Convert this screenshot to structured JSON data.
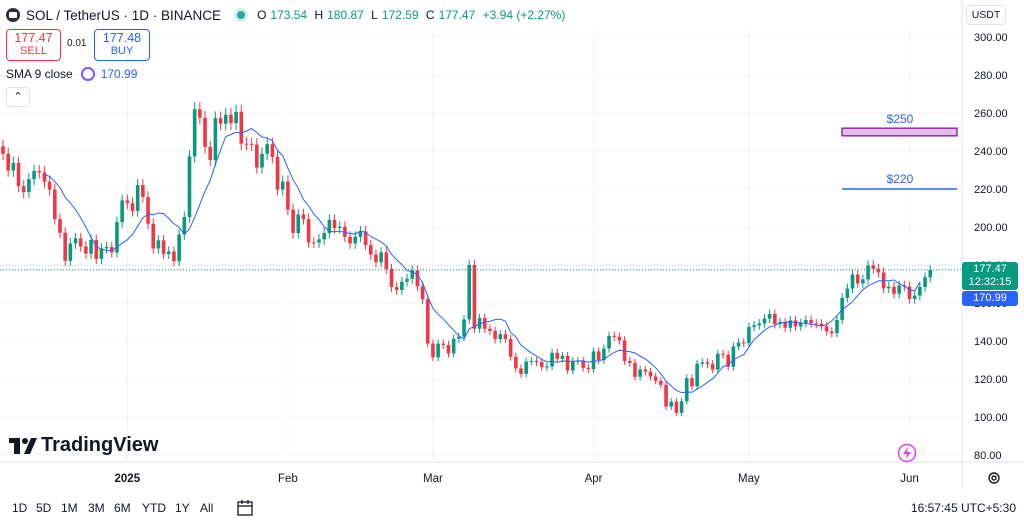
{
  "header": {
    "symbol": "SOL / TetherUS · 1D · BINANCE",
    "open_label": "O",
    "open": "173.54",
    "high_label": "H",
    "high": "180.87",
    "low_label": "L",
    "low": "172.59",
    "close_label": "C",
    "close": "177.47",
    "change": "+3.94 (+2.27%)"
  },
  "trade": {
    "sell_price": "177.47",
    "sell_label": "SELL",
    "spread": "0.01",
    "buy_price": "177.48",
    "buy_label": "BUY"
  },
  "indicator": {
    "label": "SMA 9 close",
    "value": "170.99"
  },
  "currency": "USDT",
  "brand": "TradingView",
  "price_label": {
    "price": "177.47",
    "countdown": "12:32:15",
    "sma": "170.99"
  },
  "ranges": [
    "1D",
    "5D",
    "1M",
    "3M",
    "6M",
    "YTD",
    "1Y",
    "All"
  ],
  "clock": "16:57:45 UTC+5:30",
  "colors": {
    "up": "#089981",
    "down": "#f23645",
    "sma": "#2962ff",
    "accent": "#2962ff",
    "box250_fill": "#e1bee7",
    "box250_border": "#9c27b0"
  },
  "icons": [
    "logo-icon",
    "live-dot-icon",
    "settings-cycle-icon",
    "chevron-up-icon",
    "calendar-icon",
    "gear-icon",
    "flash-icon",
    "tradingview-logo-icon"
  ],
  "chart_data": {
    "type": "candlestick",
    "y_axis": {
      "side": "right",
      "ylim": [
        70,
        310
      ],
      "ticks": [
        80,
        100,
        120,
        140,
        160,
        180,
        200,
        220,
        240,
        260,
        280,
        300
      ],
      "tick_labels": [
        "80.00",
        "100.00",
        "120.00",
        "140.00",
        "160.00",
        "180.00",
        "200.00",
        "220.00",
        "240.00",
        "260.00",
        "280.00",
        "300.00"
      ]
    },
    "x_axis": {
      "tick_labels": [
        "2025",
        "Feb",
        "Mar",
        "Apr",
        "May",
        "Jun"
      ]
    },
    "grid": true,
    "annotations": [
      {
        "label": "$250",
        "type": "box",
        "y_from": 248,
        "y_to": 252
      },
      {
        "label": "$220",
        "type": "hline",
        "y": 220
      }
    ],
    "last_price_line": 177.47,
    "close": [
      238.49,
      229.7,
      233.7,
      221.5,
      218.33,
      225.17,
      229.49,
      228.75,
      223.81,
      219.71,
      204.14,
      196.99,
      182.2,
      191.36,
      194.06,
      189.72,
      185.98,
      193.17,
      183.23,
      188.74,
      189.52,
      186.58,
      202.56,
      214.02,
      212.54,
      208.44,
      222.09,
      215.77,
      201.72,
      188.69,
      192.96,
      185.78,
      187.12,
      182.02,
      196.03,
      205.28,
      237.18,
      262.01,
      257.5,
      242.12,
      235.33,
      257.28,
      254.36,
      259.08,
      254.64,
      260.61,
      243.86,
      243.63,
      243.35,
      231.32,
      238.5,
      243.58,
      236.9,
      219.68,
      223.92,
      209.18,
      196.82,
      206.61,
      204.18,
      191.88,
      191.78,
      193.48,
      196.8,
      203.73,
      199.45,
      200.14,
      194.86,
      191.33,
      194.87,
      197.7,
      190.49,
      185.55,
      181.46,
      186.68,
      177.92,
      168.37,
      166.85,
      171.19,
      172.76,
      177.19,
      168.78,
      161.95,
      138.68,
      131.42,
      138.58,
      137.92,
      133.42,
      141.19,
      142.27,
      151.36,
      179.99,
      146.48,
      152.06,
      146.46,
      145.25,
      140.96,
      143.57,
      141.04,
      131.73,
      125.56,
      122.67,
      129.21,
      129.52,
      128.95,
      126.31,
      126.63,
      133.79,
      130.59,
      132.2,
      124.51,
      129.41,
      129.59,
      125.89,
      125.23,
      134.53,
      129.95,
      136.03,
      142.74,
      142.2,
      140.35,
      129.51,
      128.54,
      121.13,
      124.98,
      123.87,
      121.3,
      119.06,
      116.94,
      105.47,
      108.06,
      102.18,
      108.24,
      120.42,
      116.11,
      128.04,
      128.8,
      127.94,
      124.97,
      133.31,
      132.75,
      126.48,
      137.09,
      139.21,
      138.88,
      147.4,
      148.25,
      149.26,
      151.77,
      154.2,
      148.86,
      149.89,
      146.95,
      150.83,
      147.63,
      149.46,
      151.09,
      149.3,
      149.11,
      147.73,
      145.04,
      144.07,
      151.11,
      162.75,
      167.63,
      175.01,
      170.27,
      172.43,
      179.84,
      178.05,
      176.04,
      167.72,
      168.58,
      164.83,
      169.19,
      168.62,
      162.12,
      163.92,
      168.43,
      173.54,
      177.47
    ],
    "sma9": [
      null,
      null,
      null,
      null,
      null,
      null,
      null,
      null,
      227.66,
      226.63,
      223.89,
      220.81,
      215.7,
      212.69,
      209.21,
      204.8,
      199.97,
      194.52,
      189.84,
      188.23,
      187.72,
      187.64,
      189.45,
      191.45,
      193.27,
      196.1,
      200.44,
      204.92,
      206.76,
      206.42,
      207.38,
      207.03,
      204.49,
      201.61,
      199.9,
      196.19,
      199.05,
      205.13,
      211.91,
      218.74,
      224.55,
      233.05,
      240.6,
      247.63,
      248.66,
      249.91,
      249.42,
      250.53,
      251.82,
      249.75,
      247.3,
      246.94,
      245.39,
      240.33,
      237.55,
      231.01,
      224.87,
      220.34,
      214.5,
      211.11,
      206.86,
      203.87,
      200.12,
      197.66,
      197.49,
      197.79,
      197.18,
      196.53,
      196.32,
      197.92,
      197.18,
      195.01,
      193.6,
      192.2,
      189.99,
      185.71,
      182.74,
      180.21,
      177.06,
      176.55,
      174.8,
      170.66,
      163.4,
      157.25,
      154.02,
      151.66,
      148.47,
      145.68,
      142.71,
      141.11,
      146.38,
      147.69,
      149.01,
      149.98,
      150.39,
      151.26,
      151.52,
      150.45,
      144.43,
      142.22,
      137.77,
      135.71,
      133.75,
      132.13,
      130.31,
      129.12,
      129.22,
      128.82,
      129.51,
      129.25,
      129.39,
      129.45,
      129.56,
      128.76,
      129.47,
      129.47,
      130.43,
      132.33,
      133.97,
      135.14,
      134.74,
      134.43,
      133.71,
      132.01,
      130.64,
      128.47,
      125.87,
      122.8,
      118.93,
      116.32,
      113.95,
      112.83,
      113.11,
      113.07,
      114.67,
      116.3,
      118.31,
      120.14,
      123.12,
      126.51,
      127.34,
      130.12,
      131.65,
      132.77,
      136.73,
      140.72,
      143.15,
      145.63,
      147.49,
      148.07,
      149.67,
      149.89,
      150.07,
      149.94,
      149.45,
      149.22,
      148.83,
      148.26,
      148.05,
      148.47,
      150.63,
      153.3,
      156.59,
      158.55,
      160.67,
      163.91,
      166.97,
      169.11,
      170.3,
      171.65,
      171.81,
      171.74,
      172.08,
      170.23,
      168.92,
      166.91,
      166.38,
      170.99
    ]
  }
}
